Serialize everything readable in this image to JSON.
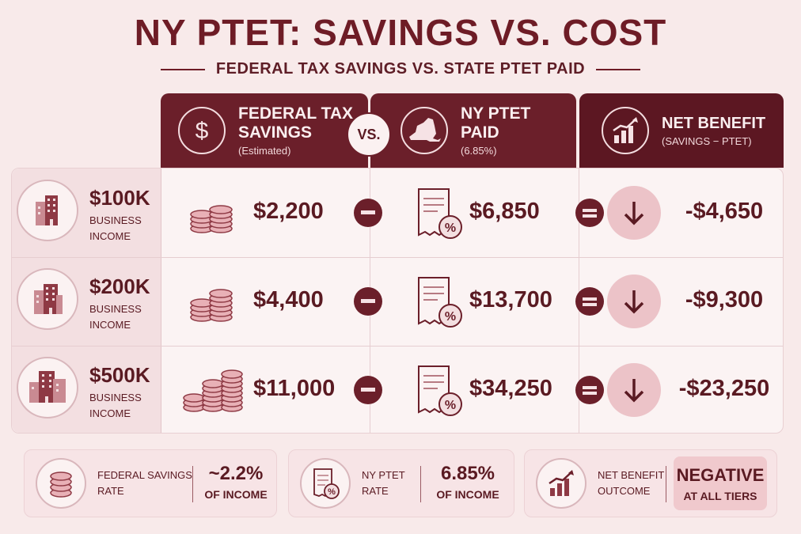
{
  "title": "NY PTET: SAVINGS VS. COST",
  "subtitle": "FEDERAL TAX SAVINGS VS. STATE PTET PAID",
  "headers": {
    "federal": {
      "title_line1": "FEDERAL TAX",
      "title_line2": "SAVINGS",
      "sub": "(Estimated)",
      "icon": "dollar-icon"
    },
    "vs": "VS.",
    "ny": {
      "title_line1": "NY PTET",
      "title_line2": "PAID",
      "sub": "(6.85%)",
      "icon": "new-york-map-icon"
    },
    "net": {
      "title": "NET BENEFIT",
      "sub": "(SAVINGS − PTET)",
      "icon": "growth-chart-icon"
    }
  },
  "rows": [
    {
      "tier": "$100K",
      "label_line1": "BUSINESS",
      "label_line2": "INCOME",
      "federal": "$2,200",
      "ny": "$6,850",
      "net": "-$4,650"
    },
    {
      "tier": "$200K",
      "label_line1": "BUSINESS",
      "label_line2": "INCOME",
      "federal": "$4,400",
      "ny": "$13,700",
      "net": "-$9,300"
    },
    {
      "tier": "$500K",
      "label_line1": "BUSINESS",
      "label_line2": "INCOME",
      "federal": "$11,000",
      "ny": "$34,250",
      "net": "-$23,250"
    }
  ],
  "footer": {
    "federal_rate": {
      "label_line1": "FEDERAL SAVINGS",
      "label_line2": "RATE",
      "value": "~2.2%",
      "unit": "OF INCOME"
    },
    "ny_rate": {
      "label_line1": "NY PTET",
      "label_line2": "RATE",
      "value": "6.85%",
      "unit": "OF INCOME"
    },
    "outcome": {
      "label_line1": "NET BENEFIT",
      "label_line2": "OUTCOME",
      "value": "NEGATIVE",
      "unit": "AT ALL TIERS"
    }
  },
  "colors": {
    "primary": "#6b1f2a",
    "background": "#f8eaea",
    "negative_accent": "#ecc3c8"
  }
}
